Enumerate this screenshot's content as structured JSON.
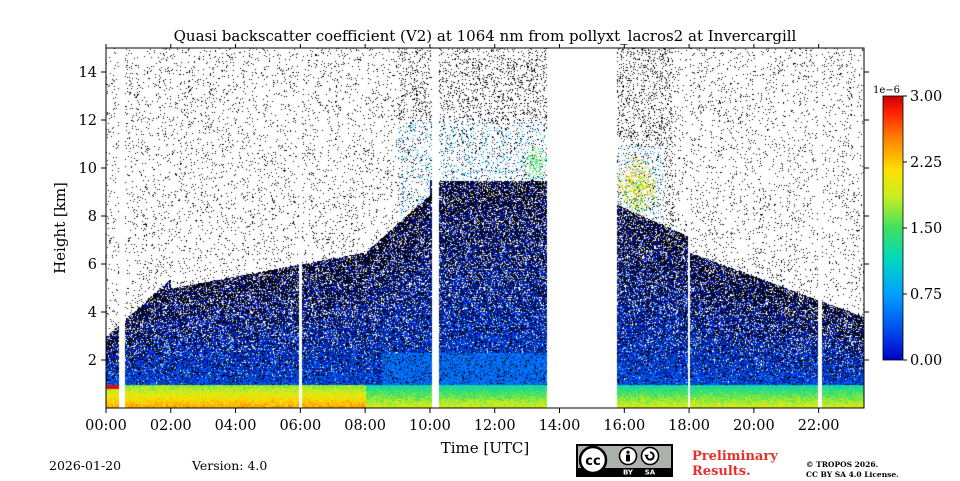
{
  "chart_data": {
    "type": "heatmap",
    "title": "Quasi backscatter coefficient (V2) at 1064 nm from pollyxt_lacros2 at Invercargill",
    "xlabel": "Time [UTC]",
    "ylabel": "Height [km]",
    "xlim": [
      0,
      23.4
    ],
    "ylim": [
      0,
      15
    ],
    "xticks": [
      0,
      2,
      4,
      6,
      8,
      10,
      12,
      14,
      16,
      18,
      20,
      22
    ],
    "xtick_labels": [
      "00:00",
      "02:00",
      "04:00",
      "06:00",
      "08:00",
      "10:00",
      "12:00",
      "14:00",
      "16:00",
      "18:00",
      "20:00",
      "22:00"
    ],
    "yticks": [
      2,
      4,
      6,
      8,
      10,
      12,
      14
    ],
    "ytick_labels": [
      "2",
      "4",
      "6",
      "8",
      "10",
      "12",
      "14"
    ],
    "colorbar": {
      "scale_label": "1e−6",
      "range": [
        0.0,
        3.0
      ],
      "ticks": [
        0.0,
        0.75,
        1.5,
        2.25,
        3.0
      ],
      "tick_labels": [
        "0.00",
        "0.75",
        "1.50",
        "2.25",
        "3.00"
      ],
      "colormap": [
        "#0000c8",
        "#0050f0",
        "#00a0ff",
        "#00d8c0",
        "#40e060",
        "#c8f020",
        "#ffe000",
        "#ff8000",
        "#ff2000",
        "#c80000"
      ]
    },
    "data_gaps_utc": [
      [
        0.4,
        0.5
      ],
      [
        0.52,
        0.56
      ],
      [
        5.95,
        6.02
      ],
      [
        10.05,
        10.25
      ],
      [
        13.6,
        15.75
      ],
      [
        17.95,
        18.02
      ],
      [
        21.95,
        22.1
      ]
    ],
    "features": [
      {
        "name": "boundary layer",
        "height_km": [
          0,
          1
        ],
        "value_approx": 1.0
      },
      {
        "name": "aerosol layer",
        "height_km": [
          1,
          6
        ],
        "value_approx": 0.2
      },
      {
        "name": "cirrus",
        "time_utc": [
          15.8,
          17.0
        ],
        "height_km": [
          8,
          10.5
        ],
        "value_approx": 2.0
      },
      {
        "name": "cirrus",
        "time_utc": [
          12.9,
          13.6
        ],
        "height_km": [
          9.5,
          11
        ],
        "value_approx": 1.5
      }
    ]
  },
  "footer": {
    "date": "2026-01-20",
    "version": "Version: 4.0",
    "preliminary_line1": "Preliminary",
    "preliminary_line2": "Results.",
    "copyright_line1": "© TROPOS 2026.",
    "copyright_line2": "CC BY SA 4.0 License.",
    "license_badge": {
      "cc": "cc",
      "by": "BY",
      "sa": "SA"
    }
  }
}
